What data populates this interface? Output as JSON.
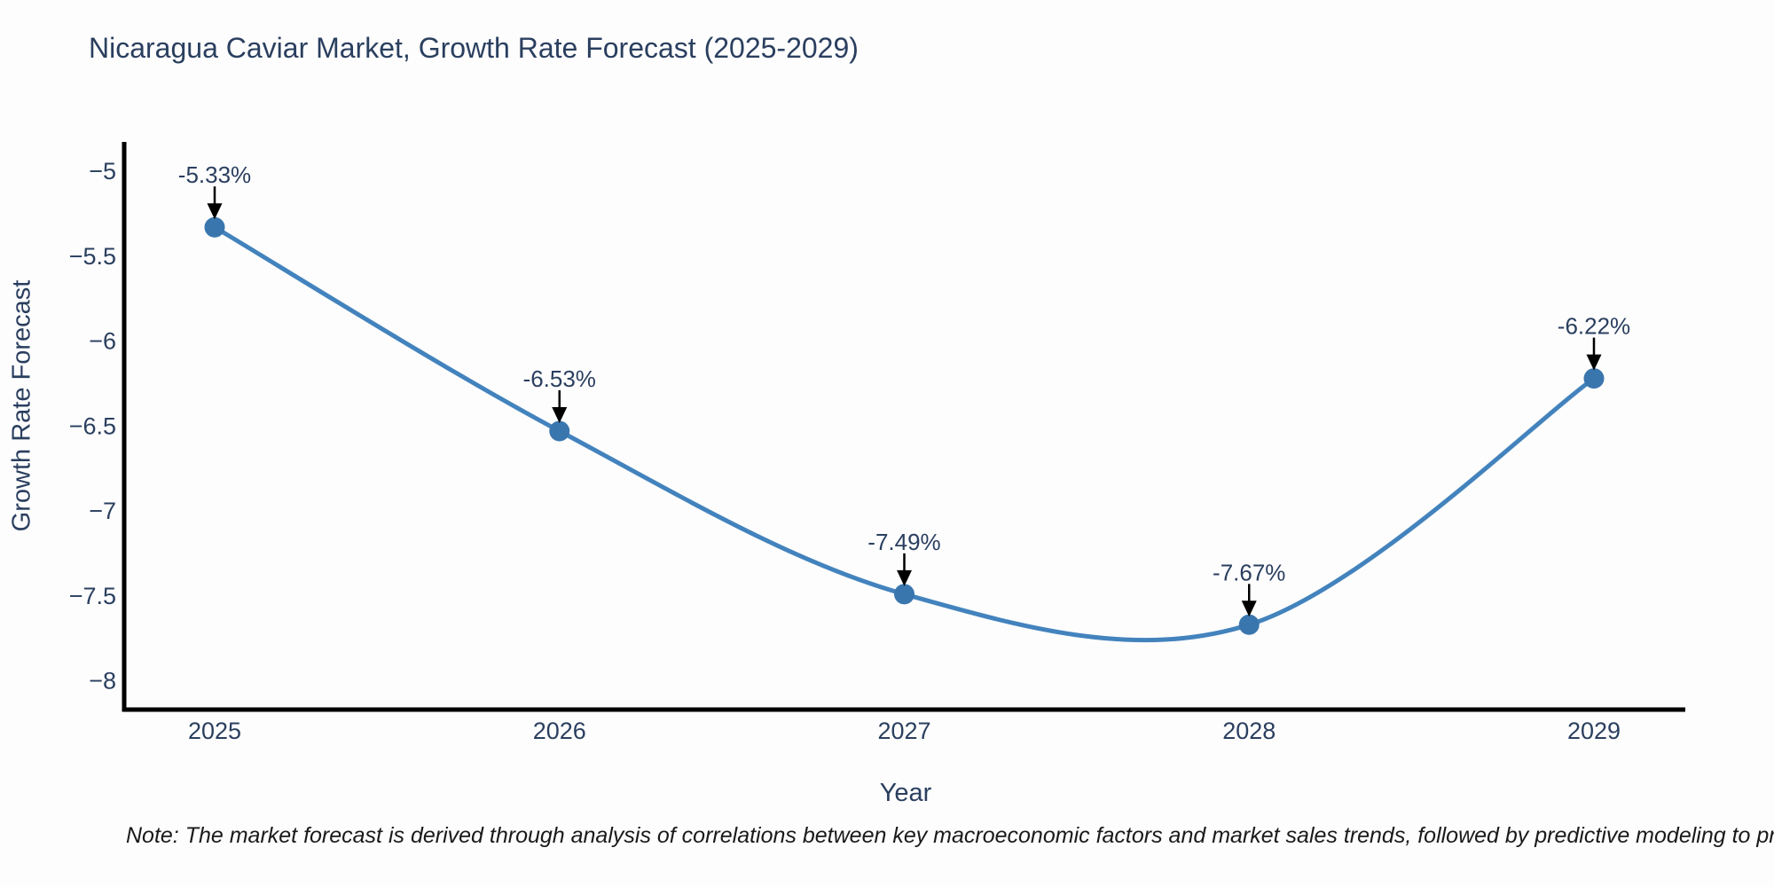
{
  "title": "Nicaragua Caviar Market, Growth Rate Forecast (2025-2029)",
  "note": "Note: The market forecast is derived through analysis of correlations between key macroeconomic factors and market sales trends, followed by predictive modeling to project future sales.",
  "chart_data": {
    "type": "line",
    "title": "Nicaragua Caviar Market, Growth Rate Forecast (2025-2029)",
    "xlabel": "Year",
    "ylabel": "Growth Rate Forecast",
    "x": [
      2025,
      2026,
      2027,
      2028,
      2029
    ],
    "values": [
      -5.33,
      -6.53,
      -7.49,
      -7.67,
      -6.22
    ],
    "point_labels": [
      "-5.33%",
      "-6.53%",
      "-7.49%",
      "-7.67%",
      "-6.22%"
    ],
    "x_tick_labels": [
      "2025",
      "2026",
      "2027",
      "2028",
      "2029"
    ],
    "y_tick_values": [
      -5,
      -5.5,
      -6,
      -6.5,
      -7,
      -7.5,
      -8
    ],
    "y_tick_labels": [
      "−5",
      "−5.5",
      "−6",
      "−6.5",
      "−7",
      "−7.5",
      "−8"
    ],
    "line_shape": "spline",
    "grid": false,
    "legend": "none",
    "ylim": [
      -8.2,
      -4.83
    ],
    "colors": {
      "line": "#4383bd",
      "marker": "#3a76ae",
      "axis": "#000000",
      "tick_text": "#2a3f5f",
      "annotation_text": "#2a3f5f",
      "annotation_arrow": "#000000",
      "background": "#fdfdfd"
    }
  }
}
